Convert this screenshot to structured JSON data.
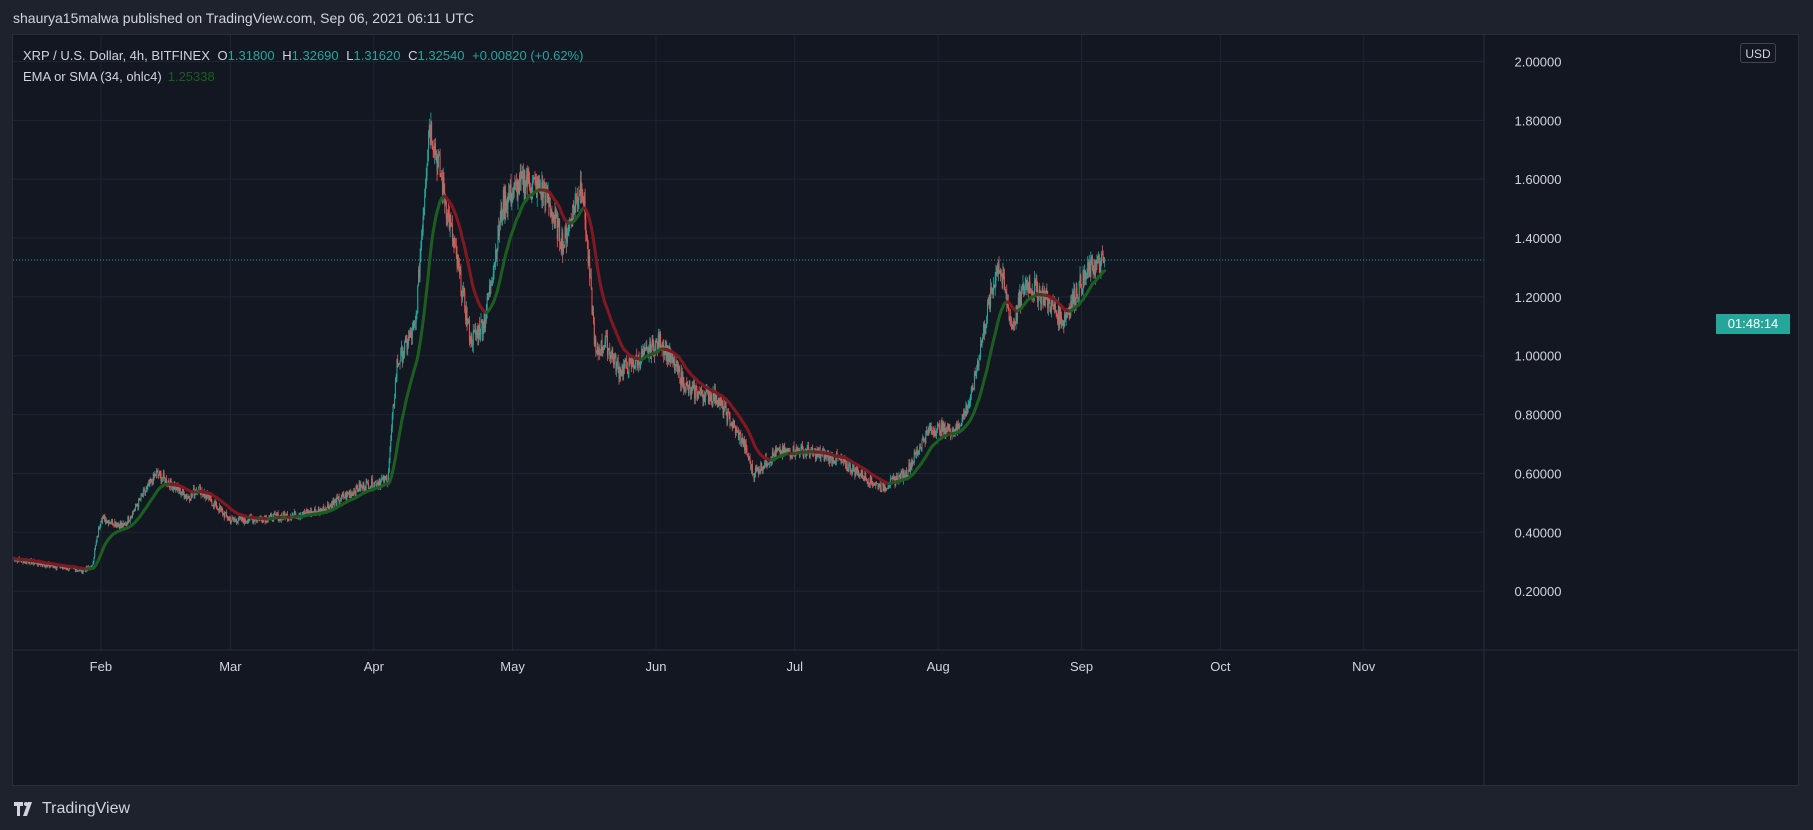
{
  "publisher_line": "shaurya15malwa published on TradingView.com, Sep 06, 2021 06:11 UTC",
  "legend": {
    "symbol": "XRP / U.S. Dollar, 4h, BITFINEX",
    "open_label": "O",
    "open": "1.31800",
    "high_label": "H",
    "high": "1.32690",
    "low_label": "L",
    "low": "1.31620",
    "close_label": "C",
    "close": "1.32540",
    "change": "+0.00820 (+0.62%)",
    "indicator": "EMA or SMA (34, ohlc4)",
    "indicator_value": "1.25338"
  },
  "currency_button": "USD",
  "countdown": "01:48:14",
  "footer_brand": "TradingView",
  "colors": {
    "up": "#26a69a",
    "down": "#ef5350",
    "ema_up": "#1b5e20",
    "ema_down": "#801922",
    "background": "#131722",
    "grid": "#1f2433"
  },
  "chart_data": {
    "type": "candlestick",
    "title": "XRP / U.S. Dollar, 4h, BITFINEX",
    "y_ticks": [
      "0.20000",
      "0.40000",
      "0.60000",
      "0.80000",
      "1.00000",
      "1.20000",
      "1.40000",
      "1.60000",
      "1.80000",
      "2.00000"
    ],
    "x_ticks": [
      "Feb",
      "Mar",
      "Apr",
      "May",
      "Jun",
      "Jul",
      "Aug",
      "Sep",
      "Oct",
      "Nov"
    ],
    "y_range": [
      0.0,
      2.09
    ],
    "x_range": [
      "2021-01-13",
      "2021-11-27"
    ],
    "last_price": 1.3254,
    "grid": true,
    "series": [
      {
        "name": "XRP / U.S. Dollar",
        "kind": "close",
        "x": [
          "2021-01-13",
          "2021-01-20",
          "2021-01-28",
          "2021-01-30",
          "2021-02-01",
          "2021-02-06",
          "2021-02-13",
          "2021-02-20",
          "2021-02-22",
          "2021-03-01",
          "2021-03-10",
          "2021-03-20",
          "2021-03-30",
          "2021-04-04",
          "2021-04-06",
          "2021-04-10",
          "2021-04-13",
          "2021-04-15",
          "2021-04-18",
          "2021-04-22",
          "2021-04-25",
          "2021-04-29",
          "2021-05-04",
          "2021-05-08",
          "2021-05-12",
          "2021-05-16",
          "2021-05-19",
          "2021-05-21",
          "2021-05-24",
          "2021-05-28",
          "2021-06-02",
          "2021-06-08",
          "2021-06-14",
          "2021-06-20",
          "2021-06-22",
          "2021-06-27",
          "2021-07-02",
          "2021-07-10",
          "2021-07-20",
          "2021-07-25",
          "2021-07-30",
          "2021-08-05",
          "2021-08-08",
          "2021-08-11",
          "2021-08-14",
          "2021-08-17",
          "2021-08-20",
          "2021-08-24",
          "2021-08-28",
          "2021-08-31",
          "2021-09-03",
          "2021-09-06"
        ],
        "y": [
          0.31,
          0.29,
          0.27,
          0.28,
          0.45,
          0.42,
          0.6,
          0.52,
          0.55,
          0.44,
          0.45,
          0.47,
          0.56,
          0.58,
          0.97,
          1.1,
          1.8,
          1.65,
          1.4,
          1.05,
          1.12,
          1.52,
          1.6,
          1.55,
          1.38,
          1.6,
          1.0,
          1.05,
          0.95,
          0.98,
          1.05,
          0.88,
          0.86,
          0.7,
          0.6,
          0.67,
          0.68,
          0.65,
          0.55,
          0.6,
          0.75,
          0.75,
          0.85,
          1.1,
          1.32,
          1.1,
          1.25,
          1.2,
          1.12,
          1.22,
          1.3,
          1.32
        ]
      },
      {
        "name": "EMA or SMA (34, ohlc4)",
        "kind": "ema",
        "window": 34
      }
    ]
  }
}
